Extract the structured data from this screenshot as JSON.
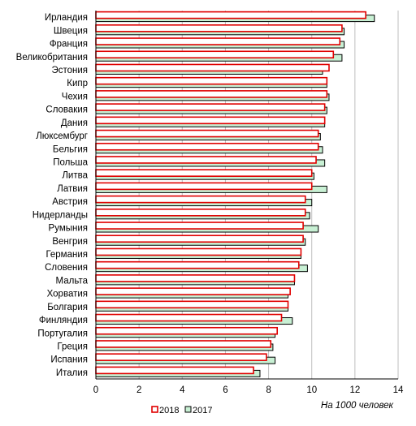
{
  "chart_data": {
    "type": "bar",
    "orientation": "horizontal",
    "categories": [
      "Ирландия",
      "Швеция",
      "Франция",
      "Великобритания",
      "Эстония",
      "Кипр",
      "Чехия",
      "Словакия",
      "Дания",
      "Люксембург",
      "Бельгия",
      "Польша",
      "Литва",
      "Латвия",
      "Австрия",
      "Нидерланды",
      "Румыния",
      "Венгрия",
      "Германия",
      "Словения",
      "Мальта",
      "Хорватия",
      "Болгария",
      "Финляндия",
      "Португалия",
      "Греция",
      "Испания",
      "Италия"
    ],
    "series": [
      {
        "name": "2018",
        "color": "#e00000",
        "fill": "#ffffff",
        "values": [
          12.5,
          11.4,
          11.3,
          11.0,
          10.8,
          10.7,
          10.7,
          10.6,
          10.6,
          10.3,
          10.3,
          10.2,
          10.0,
          10.0,
          9.7,
          9.7,
          9.6,
          9.6,
          9.5,
          9.4,
          9.2,
          9.0,
          8.9,
          8.6,
          8.4,
          8.1,
          7.9,
          7.3
        ]
      },
      {
        "name": "2017",
        "color": "#000000",
        "fill": "#c8f0d4",
        "values": [
          12.9,
          11.5,
          11.5,
          11.4,
          10.5,
          10.7,
          10.8,
          10.7,
          10.6,
          10.4,
          10.5,
          10.6,
          10.1,
          10.7,
          10.0,
          9.9,
          10.3,
          9.7,
          9.5,
          9.8,
          9.2,
          8.9,
          8.9,
          9.1,
          8.3,
          8.2,
          8.3,
          7.6
        ]
      }
    ],
    "xlim": [
      0,
      14
    ],
    "xticks": [
      "0",
      "2",
      "4",
      "6",
      "8",
      "10",
      "12",
      "14"
    ],
    "unit_label": "На 1000 человек",
    "grid": "vertical",
    "legend": "bottom-left"
  }
}
